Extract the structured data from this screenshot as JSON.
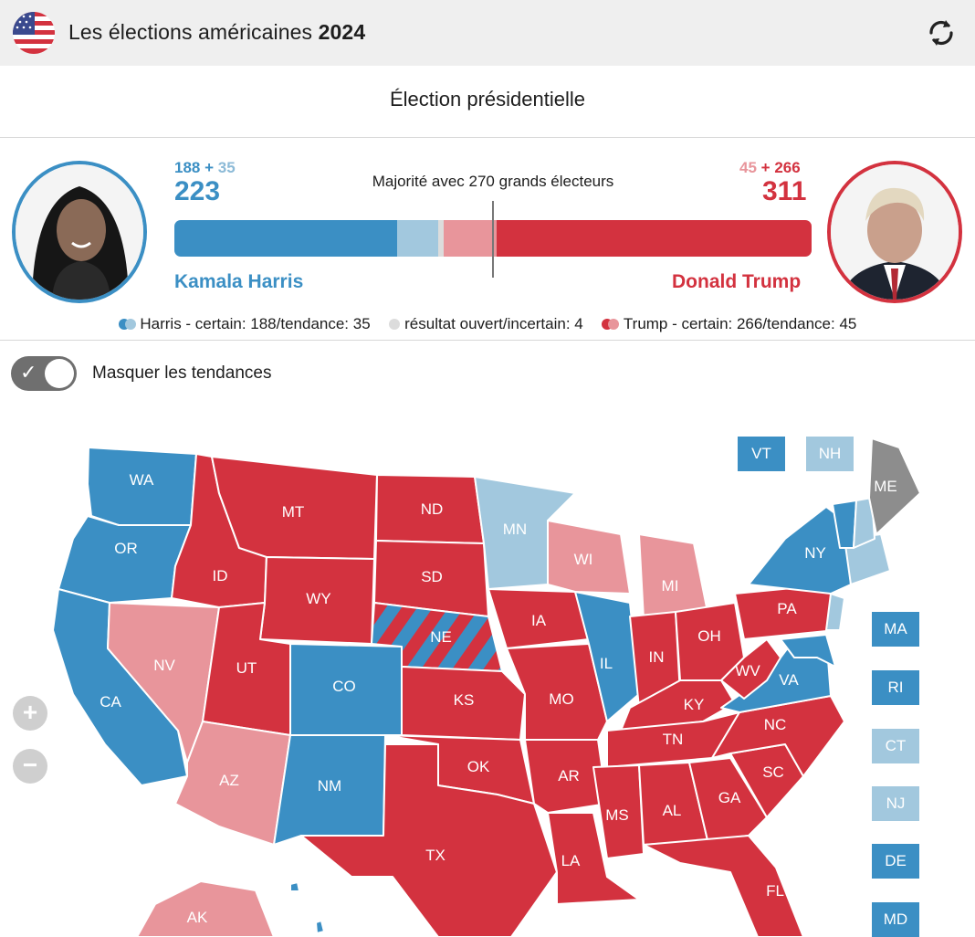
{
  "header": {
    "title_prefix": "Les élections américaines",
    "title_year": "2024"
  },
  "subtitle": "Élection présidentielle",
  "harris": {
    "certain": "188",
    "trend": "35",
    "total": "223",
    "name": "Kamala Harris"
  },
  "trump": {
    "certain": "266",
    "trend": "45",
    "total": "311",
    "name": "Donald Trump"
  },
  "plus": "+",
  "majority_text": "Majorité avec 270 grands électeurs",
  "bar": {
    "harris_certain": 188,
    "harris_trend": 35,
    "open": 4,
    "trump_trend": 45,
    "trump_certain": 266,
    "total": 538,
    "threshold": 270
  },
  "legend": {
    "harris": "Harris - certain: 188/tendance: 35",
    "open": "résultat ouvert/incertain: 4",
    "trump": "Trump - certain: 266/tendance: 45"
  },
  "toggle_label": "Masquer les tendances",
  "colors": {
    "harris_certain": "#3b8fc4",
    "harris_trend": "#a2c8de",
    "trump_certain": "#d3323f",
    "trump_trend": "#e8959b",
    "open": "#8d8d8d",
    "open_legend": "#dcdcdc"
  },
  "icons": {
    "flag": "us-flag-icon",
    "refresh": "refresh-icon",
    "zoom_in": "zoom-in-icon",
    "zoom_out": "zoom-out-icon",
    "check": "check-icon"
  },
  "zoom": {
    "in": "+",
    "out": "−"
  },
  "states": {
    "WA": "WA",
    "OR": "OR",
    "CA": "CA",
    "NV": "NV",
    "ID": "ID",
    "MT": "MT",
    "WY": "WY",
    "UT": "UT",
    "AZ": "AZ",
    "CO": "CO",
    "NM": "NM",
    "ND": "ND",
    "SD": "SD",
    "NE": "NE",
    "KS": "KS",
    "OK": "OK",
    "TX": "TX",
    "MN": "MN",
    "IA": "IA",
    "MO": "MO",
    "AR": "AR",
    "LA": "LA",
    "WI": "WI",
    "IL": "IL",
    "MI": "MI",
    "IN": "IN",
    "OH": "OH",
    "KY": "KY",
    "TN": "TN",
    "MS": "MS",
    "AL": "AL",
    "GA": "GA",
    "FL": "FL",
    "SC": "SC",
    "NC": "NC",
    "VA": "VA",
    "WV": "WV",
    "PA": "PA",
    "NY": "NY",
    "ME": "ME",
    "AK": "AK"
  },
  "side_boxes": [
    "VT",
    "NH",
    "MA",
    "RI",
    "CT",
    "NJ",
    "DE",
    "MD"
  ]
}
